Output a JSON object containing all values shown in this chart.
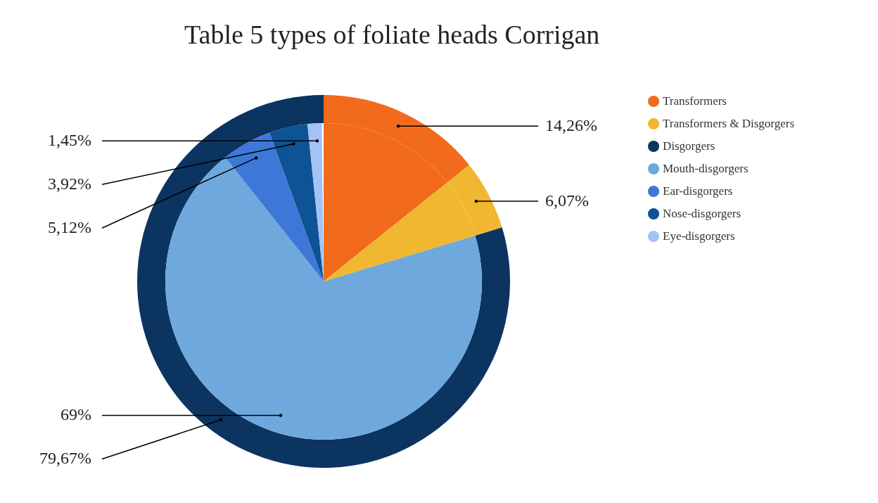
{
  "chart_data": {
    "type": "pie",
    "title": "Table 5 types of foliate heads Corrigan",
    "legend": "right",
    "categories": [
      "Transformers",
      "Transformers & Disgorgers",
      "Disgorgers",
      "Mouth-disgorgers",
      "Ear-disgorgers",
      "Nose-disgorgers",
      "Eye-disgorgers"
    ],
    "colors": [
      "#f26b1d",
      "#f2b731",
      "#0c3461",
      "#6fa8dc",
      "#3d78d8",
      "#0d5395",
      "#a4c2f4"
    ],
    "series": [
      {
        "values": [
          14.26,
          6.07,
          79.67,
          null,
          null,
          null,
          null
        ],
        "value_labels": [
          "14,26%",
          "6,07%",
          "79,67%",
          null,
          null,
          null,
          null
        ]
      },
      {
        "values": [
          14.26,
          6.07,
          null,
          69,
          5.12,
          3.92,
          1.45
        ],
        "value_labels": [
          null,
          null,
          null,
          "69%",
          "5,12%",
          "3,92%",
          "1,45%"
        ]
      }
    ]
  }
}
